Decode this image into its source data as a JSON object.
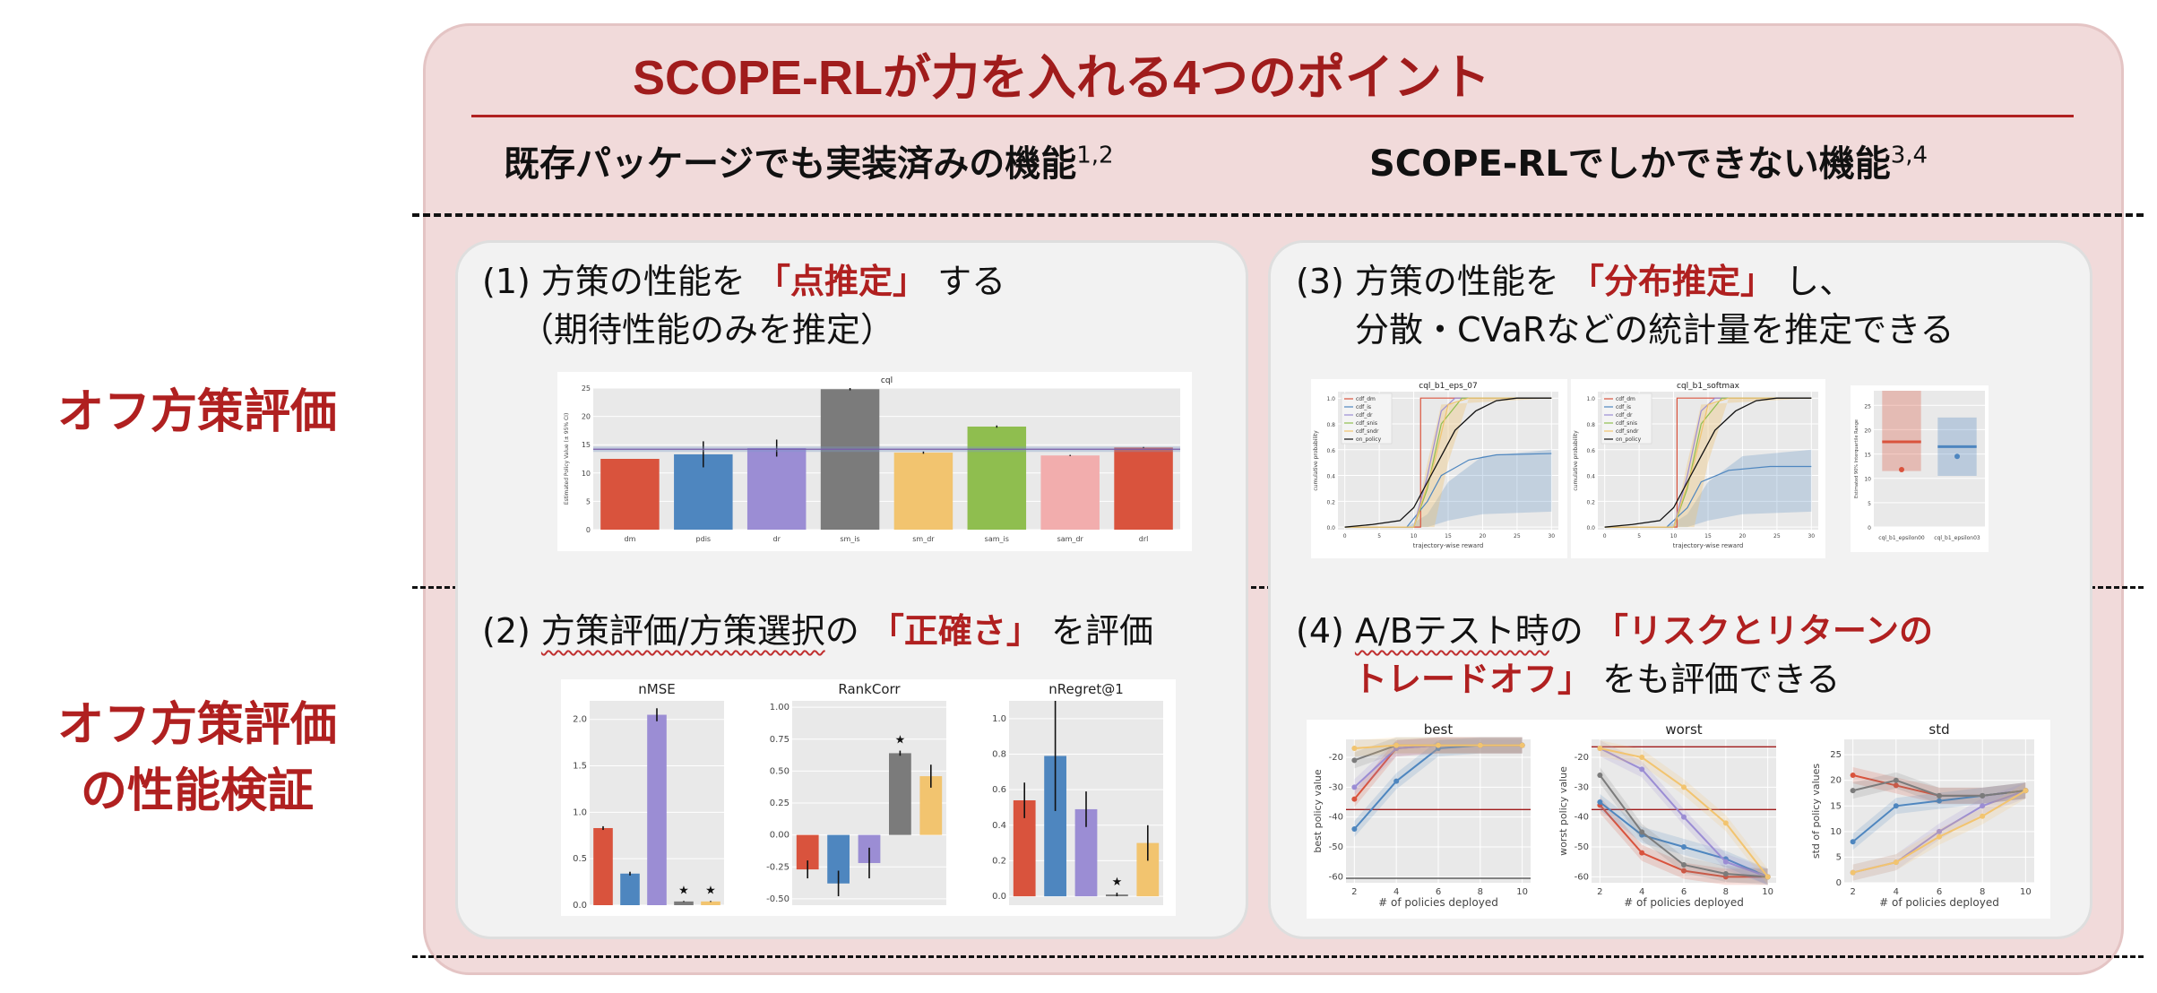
{
  "title": "SCOPE-RLが力を入れる4つのポイント",
  "columns": {
    "left": {
      "text": "既存パッケージでも実装済みの機能",
      "sup": "1,2"
    },
    "right": {
      "text": "SCOPE-RLでしかできない機能",
      "sup": "3,4"
    }
  },
  "rows": {
    "ope": "オフ方策評価",
    "assess_line1": "オフ方策評価",
    "assess_line2": "の性能検証"
  },
  "cards": {
    "c1": {
      "prefix": "(1) 方策の性能を",
      "highlight": "「点推定」",
      "suffix": "する",
      "line2": "（期待性能のみを推定）"
    },
    "c2": {
      "prefix": "(2) ",
      "wavy": "方策評価/方策選択",
      "mid": "の",
      "highlight": "「正確さ」",
      "suffix": "を評価"
    },
    "c3": {
      "prefix": "(3) 方策の性能を",
      "highlight": "「分布推定」",
      "suffix": "し、",
      "line2": "分散・CVaRなどの統計量を推定できる"
    },
    "c4": {
      "prefix": "(4) ",
      "wavy": "A/Bテスト時",
      "mid": "の",
      "highlight1": "「リスクとリターンの",
      "highlight2": "トレードオフ」",
      "suffix": "をも評価できる"
    }
  },
  "chart_data": [
    {
      "id": "cql_bar",
      "type": "bar",
      "title": "cql",
      "ylabel": "Estimated Policy Value (± 95% CI)",
      "categories": [
        "dm",
        "pdis",
        "dr",
        "sm_is",
        "sm_dr",
        "sam_is",
        "sam_dr",
        "drl"
      ],
      "values": [
        12.5,
        13.3,
        14.4,
        24.8,
        13.6,
        18.2,
        13.1,
        14.5
      ],
      "err": [
        0,
        2.3,
        1.5,
        0.2,
        0.2,
        0.2,
        0.1,
        0.1
      ],
      "colors": [
        "#d9533d",
        "#4e86bf",
        "#9b8dd4",
        "#7b7b7b",
        "#f2c46f",
        "#8fbe4f",
        "#f2adad",
        "#d9533d"
      ],
      "ylim": [
        0,
        25
      ],
      "yticks": [
        0,
        5,
        10,
        15,
        20,
        25
      ],
      "reference_line": 14.2
    },
    {
      "id": "cdf_eps",
      "type": "line",
      "title": "cql_b1_eps_07",
      "xlabel": "trajectory-wise reward",
      "ylabel": "cumulative probability",
      "xticks": [
        0,
        5,
        10,
        15,
        20,
        25,
        30
      ],
      "yticks": [
        0.0,
        0.2,
        0.4,
        0.6,
        0.8,
        1.0
      ],
      "legend": [
        "cdf_dm",
        "cdf_is",
        "cdf_dr",
        "cdf_snis",
        "cdf_sndr",
        "on_policy"
      ]
    },
    {
      "id": "cdf_softmax",
      "type": "line",
      "title": "cql_b1_softmax",
      "xlabel": "trajectory-wise reward",
      "ylabel": "cumulative probability",
      "xticks": [
        0,
        5,
        10,
        15,
        20,
        25,
        30
      ],
      "yticks": [
        0.0,
        0.2,
        0.4,
        0.6,
        0.8,
        1.0
      ],
      "legend": [
        "cdf_dm",
        "cdf_is",
        "cdf_dr",
        "cdf_snis",
        "cdf_sndr",
        "on_policy"
      ]
    },
    {
      "id": "iqr",
      "type": "bar",
      "ylabel": "Estimated 90% Interquartile Range",
      "categories": [
        "cql_b1_epsilon00",
        "cql_b1_epsilon03"
      ],
      "low": [
        11.5,
        10.5
      ],
      "high": [
        28,
        22.5
      ],
      "median": [
        17.5,
        16.5
      ],
      "point": [
        11.8,
        14.5
      ],
      "yticks": [
        0,
        5,
        10,
        15,
        20,
        25
      ],
      "ylim": [
        0,
        28
      ]
    },
    {
      "id": "nmse",
      "type": "bar",
      "title": "nMSE",
      "values": [
        0.83,
        0.34,
        2.05,
        0.04,
        0.04
      ],
      "err": [
        0.02,
        0.02,
        0.07,
        0.005,
        0.005
      ],
      "stars": [
        false,
        false,
        false,
        true,
        true
      ],
      "colors": [
        "#d9533d",
        "#4e86bf",
        "#9b8dd4",
        "#7b7b7b",
        "#f2c46f"
      ],
      "ylim": [
        0,
        2.2
      ],
      "yticks": [
        0.0,
        0.5,
        1.0,
        1.5,
        2.0
      ]
    },
    {
      "id": "rankcorr",
      "type": "bar",
      "title": "RankCorr",
      "values": [
        -0.27,
        -0.38,
        -0.22,
        0.64,
        0.46
      ],
      "err": [
        0.07,
        0.1,
        0.12,
        0.02,
        0.09
      ],
      "stars": [
        false,
        false,
        false,
        true,
        false
      ],
      "colors": [
        "#d9533d",
        "#4e86bf",
        "#9b8dd4",
        "#7b7b7b",
        "#f2c46f"
      ],
      "ylim": [
        -0.55,
        1.05
      ],
      "yticks": [
        -0.5,
        -0.25,
        0.0,
        0.25,
        0.5,
        0.75,
        1.0
      ]
    },
    {
      "id": "nregret",
      "type": "bar",
      "title": "nRegret@1",
      "values": [
        0.54,
        0.79,
        0.49,
        0.01,
        0.3
      ],
      "err": [
        0.1,
        0.31,
        0.1,
        0.01,
        0.1
      ],
      "stars": [
        false,
        false,
        false,
        true,
        false
      ],
      "colors": [
        "#d9533d",
        "#4e86bf",
        "#9b8dd4",
        "#7b7b7b",
        "#f2c46f"
      ],
      "ylim": [
        -0.05,
        1.1
      ],
      "yticks": [
        0.0,
        0.2,
        0.4,
        0.6,
        0.8,
        1.0
      ]
    },
    {
      "id": "best",
      "type": "line",
      "title": "best",
      "xlabel": "# of policies deployed",
      "ylabel": "best policy value",
      "x": [
        2,
        4,
        6,
        8,
        10
      ],
      "xticks": [
        2,
        4,
        6,
        8,
        10
      ],
      "yticks": [
        -60,
        -50,
        -40,
        -30,
        -20
      ],
      "ylim": [
        -62,
        -14
      ],
      "reference_lines": [
        -37.5,
        -60.5
      ],
      "series": [
        {
          "color": "#d9533d",
          "values": [
            -34,
            -17,
            -16,
            -16,
            -16
          ]
        },
        {
          "color": "#4e86bf",
          "values": [
            -44,
            -28,
            -17,
            -16,
            -16
          ]
        },
        {
          "color": "#9b8dd4",
          "values": [
            -30,
            -17,
            -16,
            -16,
            -16
          ]
        },
        {
          "color": "#7b7b7b",
          "values": [
            -21,
            -16,
            -16,
            -16,
            -16
          ]
        },
        {
          "color": "#f2c46f",
          "values": [
            -17,
            -16,
            -16,
            -16,
            -16
          ]
        }
      ]
    },
    {
      "id": "worst",
      "type": "line",
      "title": "worst",
      "xlabel": "# of policies deployed",
      "ylabel": "worst policy value",
      "x": [
        2,
        4,
        6,
        8,
        10
      ],
      "xticks": [
        2,
        4,
        6,
        8,
        10
      ],
      "yticks": [
        -60,
        -50,
        -40,
        -30,
        -20
      ],
      "ylim": [
        -62,
        -14
      ],
      "reference_lines": [
        -37.5,
        -16.5
      ],
      "series": [
        {
          "color": "#d9533d",
          "values": [
            -36,
            -52,
            -58,
            -60,
            -60
          ]
        },
        {
          "color": "#4e86bf",
          "values": [
            -35,
            -46,
            -50,
            -54,
            -60
          ]
        },
        {
          "color": "#9b8dd4",
          "values": [
            -17,
            -24,
            -40,
            -55,
            -60
          ]
        },
        {
          "color": "#7b7b7b",
          "values": [
            -26,
            -45,
            -56,
            -59,
            -60
          ]
        },
        {
          "color": "#f2c46f",
          "values": [
            -17,
            -20,
            -30,
            -42,
            -60
          ]
        }
      ]
    },
    {
      "id": "std",
      "type": "line",
      "title": "std",
      "xlabel": "# of policies deployed",
      "ylabel": "std of policy values",
      "x": [
        2,
        4,
        6,
        8,
        10
      ],
      "xticks": [
        2,
        4,
        6,
        8,
        10
      ],
      "yticks": [
        0,
        5,
        10,
        15,
        20,
        25
      ],
      "ylim": [
        0,
        28
      ],
      "series": [
        {
          "color": "#d9533d",
          "values": [
            21,
            19,
            17,
            17,
            18
          ]
        },
        {
          "color": "#4e86bf",
          "values": [
            8,
            15,
            16,
            17,
            18
          ]
        },
        {
          "color": "#9b8dd4",
          "values": [
            2,
            4,
            10,
            15,
            18
          ]
        },
        {
          "color": "#7b7b7b",
          "values": [
            18,
            20,
            17,
            17,
            18
          ]
        },
        {
          "color": "#f2c46f",
          "values": [
            2,
            4,
            9,
            13,
            18
          ]
        }
      ]
    }
  ]
}
